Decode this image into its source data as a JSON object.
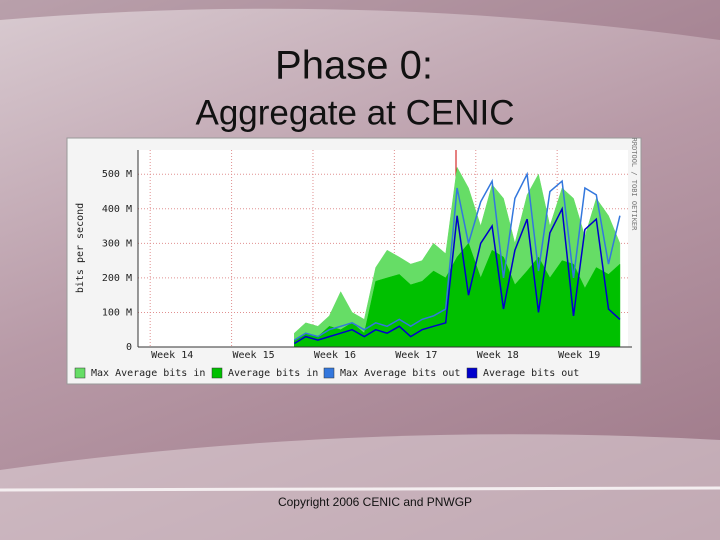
{
  "slide": {
    "title": "Phase 0:",
    "subtitle": "Aggregate at CENIC",
    "footer": "Copyright 2006 CENIC and PNWGP"
  },
  "chart_data": {
    "type": "line",
    "ylabel": "bits per second",
    "side_note": "RRDTOOL / TOBI OETIKER",
    "x": [
      15.5,
      15.64,
      15.79,
      15.93,
      16.07,
      16.21,
      16.36,
      16.5,
      16.64,
      16.79,
      16.93,
      17.07,
      17.21,
      17.36,
      17.5,
      17.64,
      17.79,
      17.93,
      18.07,
      18.21,
      18.36,
      18.5,
      18.64,
      18.79,
      18.93,
      19.07,
      19.21,
      19.36,
      19.5
    ],
    "xlim": [
      13.58,
      19.6
    ],
    "xticks": [
      {
        "value": 14,
        "label": "Week 14"
      },
      {
        "value": 15,
        "label": "Week 15"
      },
      {
        "value": 16,
        "label": "Week 16"
      },
      {
        "value": 17,
        "label": "Week 17"
      },
      {
        "value": 18,
        "label": "Week 18"
      },
      {
        "value": 19,
        "label": "Week 19"
      }
    ],
    "ylim": [
      0,
      570
    ],
    "yticks": [
      0,
      {
        "value": 100,
        "label": "100 M"
      },
      {
        "value": 200,
        "label": "200 M"
      },
      {
        "value": 300,
        "label": "300 M"
      },
      {
        "value": 400,
        "label": "400 M"
      },
      {
        "value": 500,
        "label": "500 M"
      }
    ],
    "grid": true,
    "series": [
      {
        "name": "Max Average bits in",
        "color": "#66dd66",
        "style": "area",
        "values": [
          40,
          70,
          60,
          90,
          160,
          100,
          80,
          230,
          280,
          260,
          240,
          250,
          300,
          270,
          520,
          460,
          350,
          470,
          430,
          300,
          440,
          500,
          350,
          460,
          430,
          320,
          430,
          380,
          300
        ]
      },
      {
        "name": "Average bits in",
        "color": "#00c000",
        "style": "area",
        "values": [
          20,
          40,
          30,
          60,
          50,
          70,
          40,
          190,
          200,
          210,
          180,
          190,
          220,
          200,
          260,
          300,
          200,
          280,
          260,
          180,
          220,
          260,
          200,
          250,
          240,
          170,
          230,
          210,
          240
        ]
      },
      {
        "name": "Max Average bits out",
        "color": "#3377dd",
        "style": "line",
        "values": [
          20,
          40,
          30,
          50,
          60,
          70,
          50,
          70,
          60,
          80,
          60,
          80,
          90,
          110,
          460,
          300,
          420,
          480,
          200,
          430,
          500,
          220,
          450,
          480,
          200,
          460,
          440,
          240,
          380
        ]
      },
      {
        "name": "Average bits out",
        "color": "#0000cc",
        "style": "line",
        "values": [
          10,
          30,
          20,
          30,
          40,
          50,
          30,
          50,
          40,
          60,
          30,
          50,
          60,
          70,
          380,
          150,
          300,
          350,
          110,
          280,
          370,
          100,
          330,
          400,
          90,
          340,
          370,
          110,
          80
        ]
      }
    ]
  }
}
